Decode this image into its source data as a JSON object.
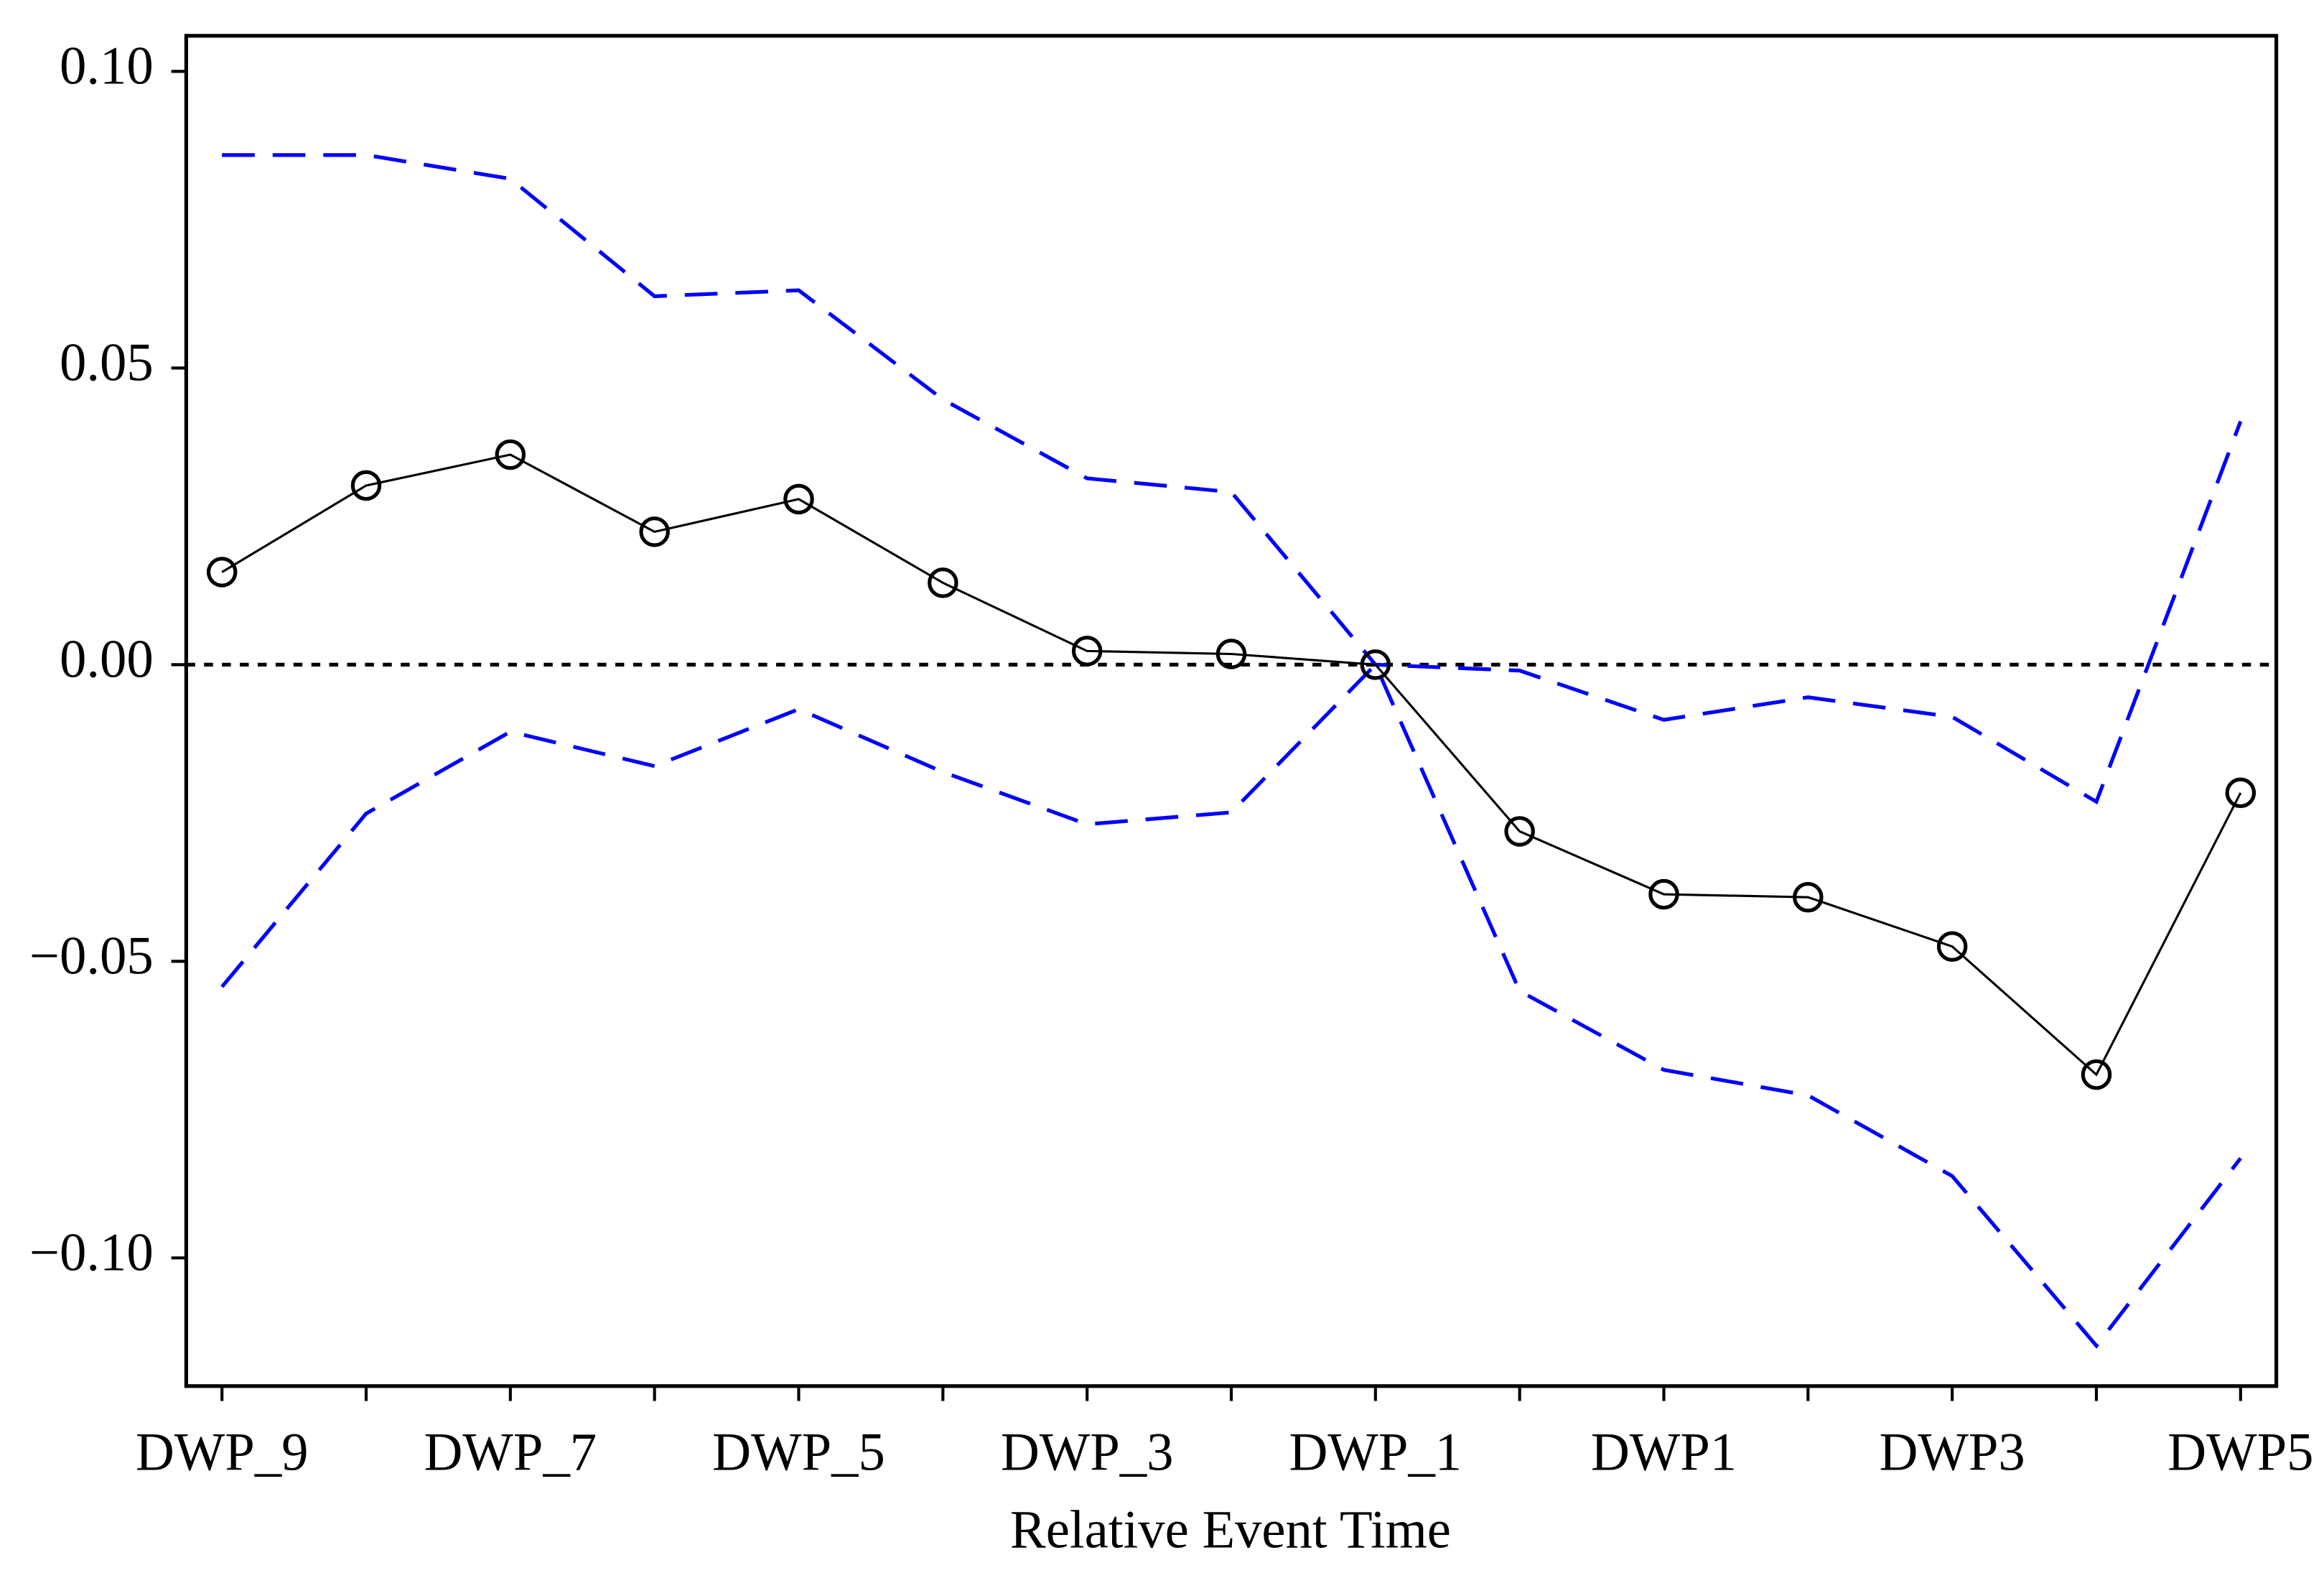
{
  "chart_data": {
    "type": "line",
    "x_label": "Relative Event Time",
    "categories": [
      "DWP_9",
      null,
      "DWP_7",
      null,
      "DWP_5",
      null,
      "DWP_3",
      null,
      "DWP_1",
      null,
      "DWP1",
      null,
      "DWP3",
      null,
      "DWP5"
    ],
    "series": [
      {
        "color": "#0000ff",
        "style": "dashed",
        "markers": false,
        "values": [
          0.0859,
          0.0859,
          0.0819,
          0.0621,
          0.0631,
          0.0447,
          0.0314,
          0.0291,
          0,
          -0.001,
          -0.0093,
          -0.0055,
          -0.0088,
          -0.0231,
          0.041
        ]
      },
      {
        "color": "#0000ff",
        "style": "dashed",
        "markers": false,
        "values": [
          -0.0543,
          -0.0251,
          -0.0113,
          -0.0171,
          -0.0075,
          -0.0181,
          -0.0269,
          -0.0249,
          0,
          -0.055,
          -0.0683,
          -0.0726,
          -0.0862,
          -0.1148,
          -0.0832
        ]
      },
      {
        "color": "#000000",
        "style": "solid",
        "markers": true,
        "values": [
          0.0156,
          0.0302,
          0.0354,
          0.0224,
          0.0279,
          0.0138,
          0.0023,
          0.0018,
          0,
          -0.0281,
          -0.0387,
          -0.0392,
          -0.0475,
          -0.0691,
          -0.0216
        ]
      }
    ],
    "ylim": [
      -0.1216,
      0.106
    ],
    "yticks": [
      {
        "value": 0.1,
        "label": "0.10"
      },
      {
        "value": 0.05,
        "label": "0.05"
      },
      {
        "value": 0,
        "label": "0.00"
      },
      {
        "value": -0.05,
        "label": "−0.05"
      },
      {
        "value": -0.1,
        "label": "−0.10"
      }
    ],
    "hline": 0
  }
}
